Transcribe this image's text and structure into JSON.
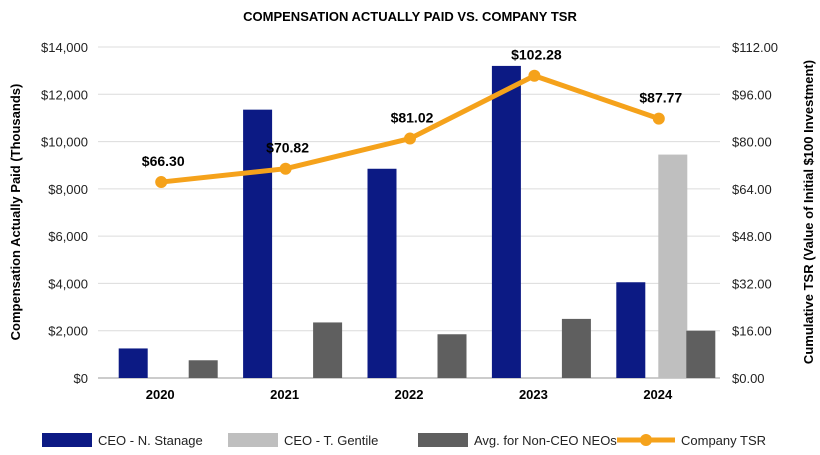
{
  "chart_data": {
    "type": "bar",
    "title": "COMPENSATION ACTUALLY PAID VS. COMPANY TSR",
    "categories": [
      "2020",
      "2021",
      "2022",
      "2023",
      "2024"
    ],
    "ylabel": "Compensation Actually Paid (Thousands)",
    "ylabel_right": "Cumulative TSR (Value of Initial $100 Investment)",
    "ylim": [
      0,
      14000
    ],
    "ylim_right": [
      0,
      112
    ],
    "y_ticks": [
      "$0",
      "$2,000",
      "$4,000",
      "$6,000",
      "$8,000",
      "$10,000",
      "$12,000",
      "$14,000"
    ],
    "y_right_ticks": [
      "$0.00",
      "$16.00",
      "$32.00",
      "$48.00",
      "$64.00",
      "$80.00",
      "$96.00",
      "$112.00"
    ],
    "series": [
      {
        "name": "CEO - N. Stanage",
        "kind": "bar",
        "color": "#0c1a84",
        "values": [
          1250,
          11350,
          8850,
          13200,
          4050
        ]
      },
      {
        "name": "CEO - T. Gentile",
        "kind": "bar",
        "color": "#bfbfbf",
        "values": [
          null,
          null,
          null,
          null,
          9450
        ]
      },
      {
        "name": "Avg. for Non-CEO NEOs",
        "kind": "bar",
        "color": "#5f5f5f",
        "values": [
          750,
          2350,
          1850,
          2500,
          2000
        ]
      },
      {
        "name": "Company TSR",
        "kind": "line",
        "axis": "right",
        "color": "#f5a21b",
        "values": [
          66.3,
          70.82,
          81.02,
          102.28,
          87.77
        ],
        "labels": [
          "$66.30",
          "$70.82",
          "$81.02",
          "$102.28",
          "$87.77"
        ]
      }
    ],
    "grid": true,
    "legend": "bottom"
  }
}
